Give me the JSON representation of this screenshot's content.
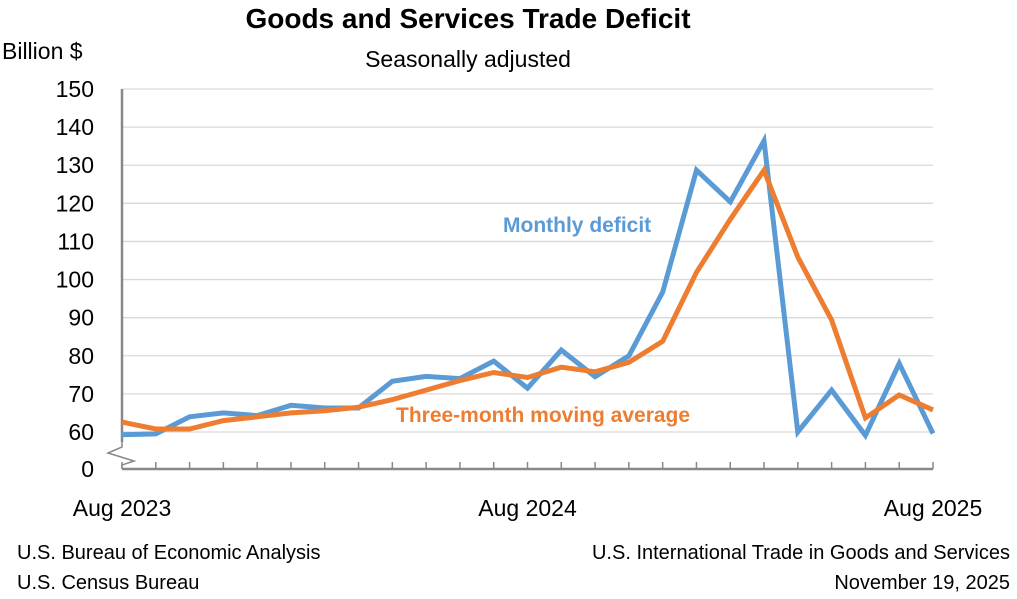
{
  "chart_data": {
    "type": "line",
    "title": "Goods and Services Trade Deficit",
    "subtitle": "Seasonally adjusted",
    "ylabel": "Billion $",
    "xlabel": "",
    "ylim": [
      60,
      150
    ],
    "y_axis_break": true,
    "yticks": [
      "0",
      "60",
      "70",
      "80",
      "90",
      "100",
      "110",
      "120",
      "130",
      "140",
      "150"
    ],
    "grid": true,
    "x": [
      "Aug 2023",
      "Sep 2023",
      "Oct 2023",
      "Nov 2023",
      "Dec 2023",
      "Jan 2024",
      "Feb 2024",
      "Mar 2024",
      "Apr 2024",
      "May 2024",
      "Jun 2024",
      "Jul 2024",
      "Aug 2024",
      "Sep 2024",
      "Oct 2024",
      "Nov 2024",
      "Dec 2024",
      "Jan 2025",
      "Feb 2025",
      "Mar 2025",
      "Apr 2025",
      "May 2025",
      "Jun 2025",
      "Jul 2025",
      "Aug 2025"
    ],
    "xtick_labels": [
      "Aug 2023",
      "Aug 2024",
      "Aug 2025"
    ],
    "series": [
      {
        "name": "Monthly deficit",
        "color": "#5B9BD5",
        "values": [
          59.3,
          59.5,
          64.0,
          65.0,
          64.3,
          67.0,
          66.3,
          66.3,
          73.3,
          74.6,
          74.0,
          78.6,
          71.5,
          81.5,
          74.5,
          80.0,
          96.7,
          128.7,
          120.4,
          136.4,
          60.0,
          71.0,
          59.1,
          78.0,
          59.6
        ]
      },
      {
        "name": "Three-month moving average",
        "color": "#ED7D31",
        "values": [
          62.6,
          60.8,
          60.8,
          63.0,
          64.0,
          65.0,
          65.6,
          66.5,
          68.5,
          71.0,
          73.5,
          75.6,
          74.3,
          77.0,
          75.8,
          78.3,
          83.8,
          101.9,
          115.8,
          128.7,
          105.9,
          89.4,
          63.7,
          69.7,
          65.8
        ]
      }
    ]
  },
  "footer": {
    "left_line1": "U.S. Bureau of Economic Analysis",
    "left_line2": "U.S. Census Bureau",
    "right_line1": "U.S. International Trade in Goods and Services",
    "right_line2": "November 19, 2025"
  }
}
